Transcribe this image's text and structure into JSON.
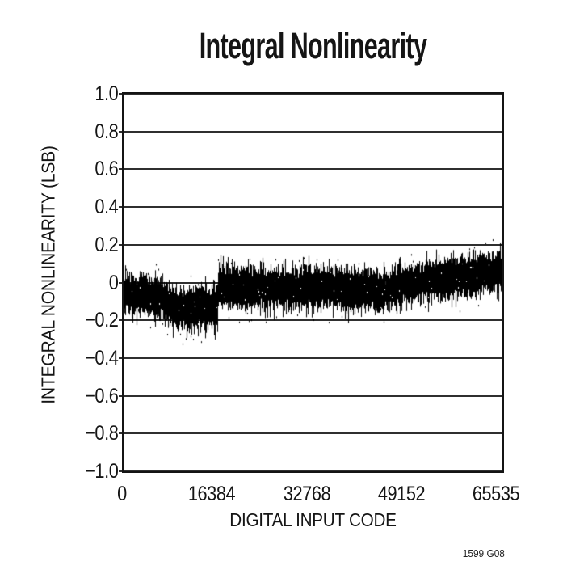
{
  "page": {
    "background": "#ffffff",
    "note": "1599 G08"
  },
  "chart_data": {
    "type": "line",
    "subtype": "dense-noise-band",
    "title": "Integral Nonlinearity",
    "xlabel": "DIGITAL INPUT CODE",
    "ylabel": "INTEGRAL NONLINEARITY (LSB)",
    "xlim": [
      0,
      65535
    ],
    "ylim": [
      -1.0,
      1.0
    ],
    "xticks": [
      0,
      16384,
      32768,
      49152,
      65535
    ],
    "xtick_labels": [
      "0",
      "16384",
      "32768",
      "49152",
      "65535"
    ],
    "ytick_values": [
      1.0,
      0.8,
      0.6,
      0.4,
      0.2,
      0,
      -0.2,
      -0.4,
      -0.6,
      -0.8,
      -1.0
    ],
    "ytick_labels": [
      "1.0",
      "0.8",
      "0.6",
      "0.4",
      "0.2",
      "0",
      "−0.2",
      "−0.4",
      "−0.6",
      "−0.8",
      "−1.0"
    ],
    "grid": "horizontal-only",
    "legend": "none",
    "trace_color": "#000000",
    "series": [
      {
        "name": "INL",
        "description": "Integral nonlinearity vs digital input code; dense noise band ~0.25 LSB peak-to-peak, dip before code 16384, step up at 16384, rising trend toward full scale",
        "envelope": [
          [
            0,
            -0.06,
            0.115
          ],
          [
            3000,
            -0.065,
            0.11
          ],
          [
            6000,
            -0.075,
            0.11
          ],
          [
            7500,
            -0.1,
            0.11
          ],
          [
            9000,
            -0.135,
            0.115
          ],
          [
            12000,
            -0.14,
            0.12
          ],
          [
            15000,
            -0.135,
            0.125
          ],
          [
            16300,
            -0.14,
            0.128
          ],
          [
            16384,
            -0.02,
            0.125
          ],
          [
            19000,
            -0.015,
            0.12
          ],
          [
            22000,
            -0.03,
            0.115
          ],
          [
            26000,
            -0.02,
            0.12
          ],
          [
            30000,
            -0.035,
            0.12
          ],
          [
            32768,
            -0.025,
            0.12
          ],
          [
            36000,
            -0.02,
            0.115
          ],
          [
            39000,
            -0.045,
            0.115
          ],
          [
            42000,
            -0.035,
            0.12
          ],
          [
            45000,
            -0.045,
            0.12
          ],
          [
            48000,
            -0.01,
            0.115
          ],
          [
            51000,
            0.0,
            0.11
          ],
          [
            54000,
            0.01,
            0.115
          ],
          [
            57000,
            0.02,
            0.115
          ],
          [
            60000,
            0.035,
            0.115
          ],
          [
            63000,
            0.05,
            0.115
          ],
          [
            65535,
            0.065,
            0.115
          ]
        ]
      }
    ],
    "note": "1599 G08"
  }
}
